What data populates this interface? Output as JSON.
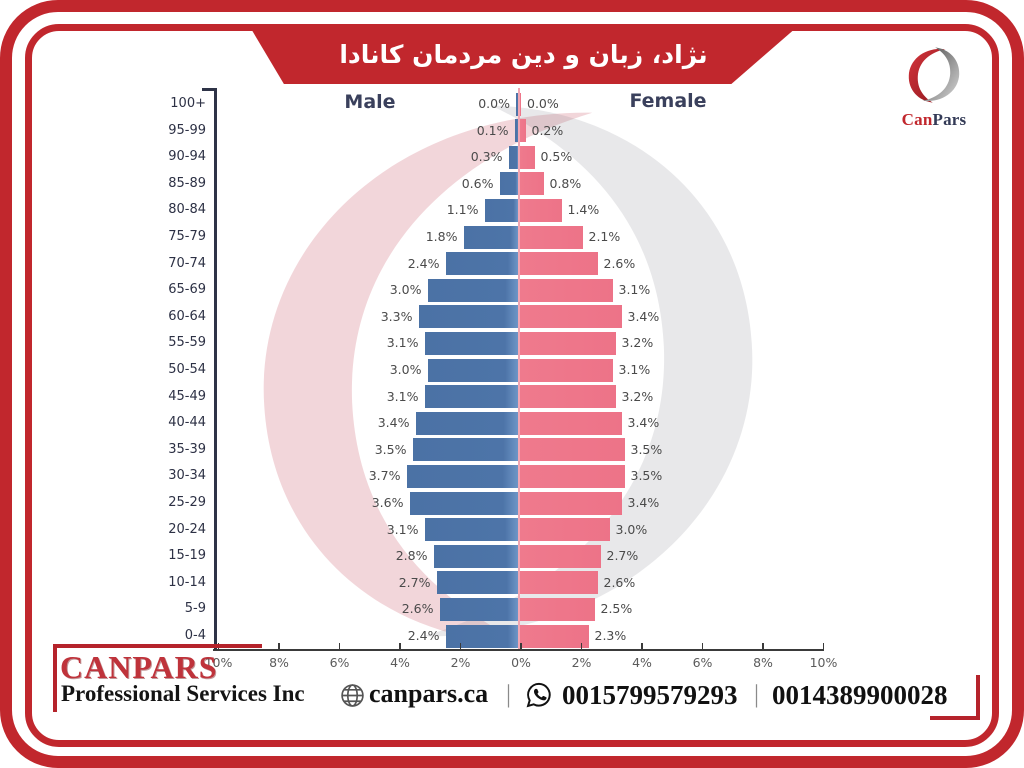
{
  "banner": {
    "title": "نژاد، زبان و دین مردمان کانادا"
  },
  "logo": {
    "can": "Can",
    "pars": "Pars"
  },
  "chart_data": {
    "type": "bar",
    "subtype": "population_pyramid",
    "title_left": "Male",
    "title_right": "Female",
    "unit": "%",
    "grid": false,
    "legend": "none",
    "x_axis_range_each_side": [
      0,
      10
    ],
    "categories": [
      "100+",
      "95-99",
      "90-94",
      "85-89",
      "80-84",
      "75-79",
      "70-74",
      "65-69",
      "60-64",
      "55-59",
      "50-54",
      "45-49",
      "40-44",
      "35-39",
      "30-34",
      "25-29",
      "20-24",
      "15-19",
      "10-14",
      "5-9",
      "0-4"
    ],
    "series": [
      {
        "name": "Male",
        "color": "#4d74a8",
        "values": [
          0.0,
          0.1,
          0.3,
          0.6,
          1.1,
          1.8,
          2.4,
          3.0,
          3.3,
          3.1,
          3.0,
          3.1,
          3.4,
          3.5,
          3.7,
          3.6,
          3.1,
          2.8,
          2.7,
          2.6,
          2.4
        ]
      },
      {
        "name": "Female",
        "color": "#ef7a8d",
        "values": [
          0.0,
          0.2,
          0.5,
          0.8,
          1.4,
          2.1,
          2.6,
          3.1,
          3.4,
          3.2,
          3.1,
          3.2,
          3.4,
          3.5,
          3.5,
          3.4,
          3.0,
          2.7,
          2.6,
          2.5,
          2.3
        ]
      }
    ],
    "x_tick_labels": [
      "10%",
      "8%",
      "6%",
      "4%",
      "2%",
      "0%",
      "2%",
      "4%",
      "6%",
      "8%",
      "10%"
    ]
  },
  "footer": {
    "company": "CANPARS",
    "tagline": "Professional Services Inc",
    "website": "canpars.ca",
    "divider": "|",
    "phone1": "0015799579293",
    "phone2": "0014389900028"
  },
  "colors": {
    "frame_red": "#c1272d",
    "male_bar": "#4d74a8",
    "female_bar": "#ef7a8d",
    "center_line": "#f2a7b3",
    "watermark_pink": "rgba(198,70,85,0.22)",
    "watermark_gray": "rgba(120,120,128,0.17)"
  }
}
